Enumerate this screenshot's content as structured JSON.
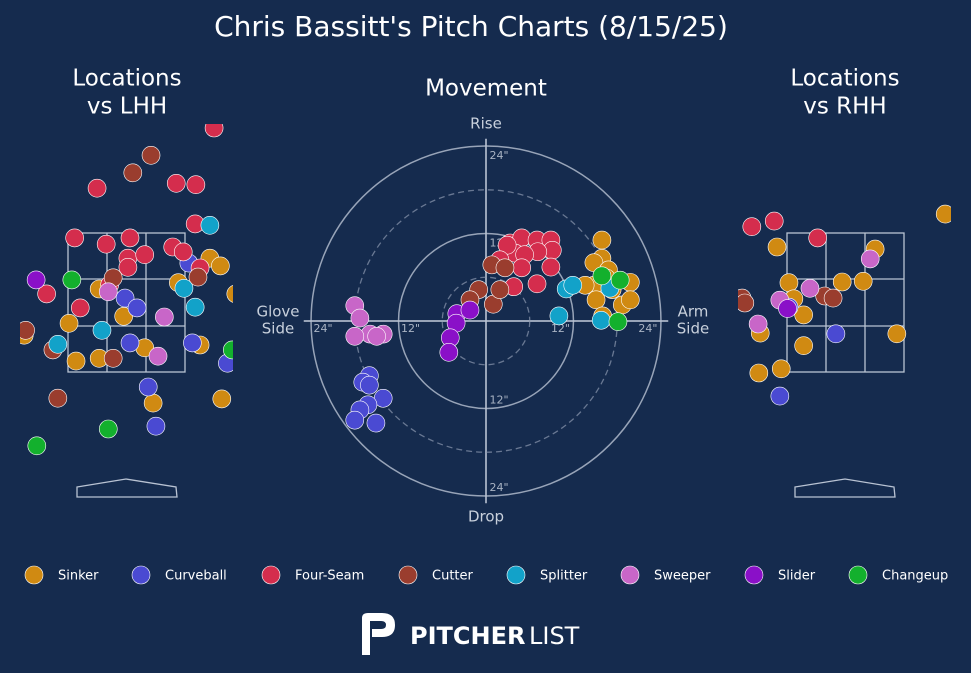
{
  "title": "Chris Bassitt's Pitch Charts (8/15/25)",
  "legend": [
    {
      "name": "Sinker",
      "color": "#d08a12"
    },
    {
      "name": "Curveball",
      "color": "#4a4ad2"
    },
    {
      "name": "Four-Seam",
      "color": "#d42d4d"
    },
    {
      "name": "Cutter",
      "color": "#9a3d2e"
    },
    {
      "name": "Splitter",
      "color": "#12a2c9"
    },
    {
      "name": "Sweeper",
      "color": "#c866c8"
    },
    {
      "name": "Slider",
      "color": "#8a10c8"
    },
    {
      "name": "Changeup",
      "color": "#13b02d"
    }
  ],
  "footer": {
    "brand_bold": "PITCHER",
    "brand_light": "LIST"
  },
  "chart_data": [
    {
      "type": "scatter",
      "title": [
        "Locations",
        "vs LHH"
      ],
      "xlim": [
        -1.52,
        1.52
      ],
      "ylim": [
        -0.3,
        5.05
      ],
      "series": [
        {
          "x": [
            -0.39,
            -0.82,
            -0.72,
            -0.39,
            -0.04,
            0.74,
            1.19,
            1.34,
            1.56,
            1.05,
            0.38,
            1.36,
            -1.46,
            0.26
          ],
          "y": [
            2.7,
            2.21,
            1.67,
            1.71,
            2.31,
            2.79,
            3.14,
            3.03,
            2.63,
            1.9,
            1.07,
            1.13,
            2.04,
            1.86
          ]
        },
        {
          "x": [
            -0.02,
            0.15,
            0.89,
            0.94,
            0.05,
            0.31,
            0.42,
            1.44
          ],
          "y": [
            2.57,
            2.43,
            3.07,
            1.93,
            1.93,
            1.3,
            0.74,
            1.64
          ]
        },
        {
          "x": [
            1.25,
            -0.42,
            0.71,
            0.99,
            -0.74,
            -0.29,
            0.05,
            0.02,
            0.26,
            0.66,
            0.81,
            0.98,
            -1.14,
            -0.66,
            -0.24,
            0.02,
            1.05
          ],
          "y": [
            5.0,
            4.14,
            4.21,
            4.19,
            3.43,
            3.34,
            3.43,
            3.14,
            3.19,
            3.3,
            3.23,
            3.63,
            2.63,
            2.43,
            2.76,
            3.01,
            3.0
          ]
        },
        {
          "x": [
            0.35,
            0.09,
            -0.19,
            -1.44,
            -1.05,
            -0.19,
            -0.98,
            1.02
          ],
          "y": [
            4.61,
            4.36,
            2.86,
            2.11,
            1.83,
            1.71,
            1.14,
            2.87
          ]
        },
        {
          "x": [
            1.19,
            0.82,
            0.98,
            -0.35,
            -0.98
          ],
          "y": [
            3.61,
            2.71,
            2.44,
            2.11,
            1.91
          ]
        },
        {
          "x": [
            -0.26,
            0.54,
            0.45
          ],
          "y": [
            2.66,
            2.3,
            1.74
          ]
        },
        {
          "x": [
            -1.29
          ],
          "y": [
            2.83
          ]
        },
        {
          "x": [
            -0.78,
            -1.28,
            -0.26,
            1.51
          ],
          "y": [
            2.83,
            0.46,
            0.7,
            1.83
          ]
        }
      ]
    },
    {
      "type": "polar",
      "title": "Movement",
      "axis_labels": {
        "top": "Rise",
        "bottom": "Drop",
        "left": [
          "Glove",
          "Side"
        ],
        "right": [
          "Arm",
          "Side"
        ]
      },
      "rlim": [
        0,
        25
      ],
      "minor_rings": [
        6,
        18
      ],
      "rticks": [
        {
          "value": 12,
          "label": "12\""
        },
        {
          "value": 24,
          "label": "24\""
        }
      ],
      "series": [
        {
          "x": [
            15.9,
            15.9,
            14.8,
            16.8,
            19.8,
            14.8,
            17.3,
            15.1,
            18.7,
            19.8,
            16.0,
            13.6,
            16.5
          ],
          "y": [
            11.1,
            8.6,
            8.0,
            7.0,
            5.3,
            4.9,
            4.3,
            2.9,
            2.2,
            2.9,
            0.7,
            4.9,
            5.9
          ]
        },
        {
          "x": [
            -16.0,
            -16.9,
            -16.0,
            -14.1,
            -16.2,
            -17.3,
            -18.0,
            -15.1
          ],
          "y": [
            -7.5,
            -8.4,
            -8.8,
            -10.6,
            -11.5,
            -12.2,
            -13.6,
            -14.0
          ]
        },
        {
          "x": [
            3.3,
            4.9,
            7.0,
            8.9,
            9.1,
            7.1,
            4.0,
            5.3,
            2.9,
            4.9,
            8.9,
            7.0,
            3.8,
            1.9
          ],
          "y": [
            10.7,
            11.4,
            11.1,
            11.1,
            9.7,
            9.5,
            9.3,
            9.1,
            10.4,
            7.3,
            7.4,
            5.1,
            4.7,
            8.4
          ]
        },
        {
          "x": [
            0.8,
            2.6,
            -1.0,
            -2.2,
            1.0,
            1.9
          ],
          "y": [
            7.7,
            7.3,
            4.3,
            2.9,
            2.3,
            4.3
          ]
        },
        {
          "x": [
            10.0,
            11.0,
            11.9,
            17.0,
            15.8
          ],
          "y": [
            0.7,
            4.4,
            4.9,
            4.5,
            0.1
          ]
        },
        {
          "x": [
            -18.0,
            -17.3,
            -15.9,
            -18.0,
            -14.1,
            -15.0
          ],
          "y": [
            2.1,
            0.4,
            -1.8,
            -2.1,
            -1.8,
            -2.1
          ]
        },
        {
          "x": [
            -4.0,
            -2.2,
            -4.1,
            -4.9,
            -5.1
          ],
          "y": [
            1.0,
            1.5,
            -0.3,
            -2.3,
            -4.3
          ]
        },
        {
          "x": [
            15.9,
            18.4,
            18.1
          ],
          "y": [
            6.2,
            5.6,
            -0.1
          ]
        }
      ]
    },
    {
      "type": "scatter",
      "title": [
        "Locations",
        "vs RHH"
      ],
      "xlim": [
        -1.52,
        1.52
      ],
      "ylim": [
        -0.3,
        5.05
      ],
      "series": [
        {
          "x": [
            1.43,
            -0.97,
            0.43,
            -0.8,
            -0.73,
            -0.59,
            -0.04,
            0.26,
            0.74,
            -0.59,
            -1.21,
            -1.23,
            -0.91
          ],
          "y": [
            3.77,
            3.3,
            3.27,
            2.79,
            2.56,
            2.33,
            2.8,
            2.81,
            2.06,
            1.89,
            2.07,
            1.5,
            1.56
          ]
        },
        {
          "x": [
            -0.13,
            -0.93,
            -0.8
          ],
          "y": [
            2.06,
            1.17,
            2.44
          ]
        },
        {
          "x": [
            -1.33,
            -1.01,
            -0.39
          ],
          "y": [
            3.59,
            3.67,
            3.43
          ]
        },
        {
          "x": [
            -1.47,
            -1.43,
            -0.29,
            -0.17
          ],
          "y": [
            2.57,
            2.5,
            2.6,
            2.57
          ]
        },
        {
          "x": [],
          "y": []
        },
        {
          "x": [
            0.36,
            -0.5,
            -0.93,
            -1.24
          ],
          "y": [
            3.13,
            2.71,
            2.54,
            2.2
          ]
        },
        {
          "x": [
            -0.82
          ],
          "y": [
            2.42
          ]
        },
        {
          "x": [],
          "y": []
        }
      ]
    }
  ]
}
